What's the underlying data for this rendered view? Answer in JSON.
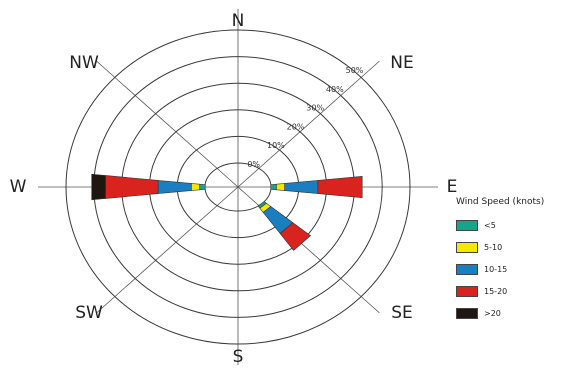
{
  "chart_data": {
    "type": "wind-rose",
    "ring_labels": [
      "0%",
      "10%",
      "20%",
      "30%",
      "40%",
      "50%"
    ],
    "ring_values": [
      0,
      10,
      20,
      30,
      40,
      50
    ],
    "radial_max": 50,
    "directions": [
      {
        "label": "N",
        "angle": 0
      },
      {
        "label": "NE",
        "angle": 45
      },
      {
        "label": "E",
        "angle": 90
      },
      {
        "label": "SE",
        "angle": 135
      },
      {
        "label": "S",
        "angle": 180
      },
      {
        "label": "SW",
        "angle": 225
      },
      {
        "label": "W",
        "angle": 270
      },
      {
        "label": "NW",
        "angle": 315
      }
    ],
    "legend": {
      "title": "Wind Speed (knots)",
      "position": "right"
    },
    "series": [
      {
        "name": "<5",
        "color": "#17a589"
      },
      {
        "name": "5-10",
        "color": "#f4e800"
      },
      {
        "name": "10-15",
        "color": "#1a7fc1"
      },
      {
        "name": "15-20",
        "color": "#d8231f"
      },
      {
        "name": ">20",
        "color": "#1f1511"
      }
    ],
    "petals": [
      {
        "direction": "E",
        "angle": 90,
        "values": [
          2,
          3,
          12,
          16,
          0
        ]
      },
      {
        "direction": "W",
        "angle": 270,
        "values": [
          2,
          3,
          12,
          19,
          5
        ]
      },
      {
        "direction": "SE",
        "angle": 135,
        "values": [
          1,
          2,
          10,
          8,
          0
        ]
      }
    ]
  }
}
